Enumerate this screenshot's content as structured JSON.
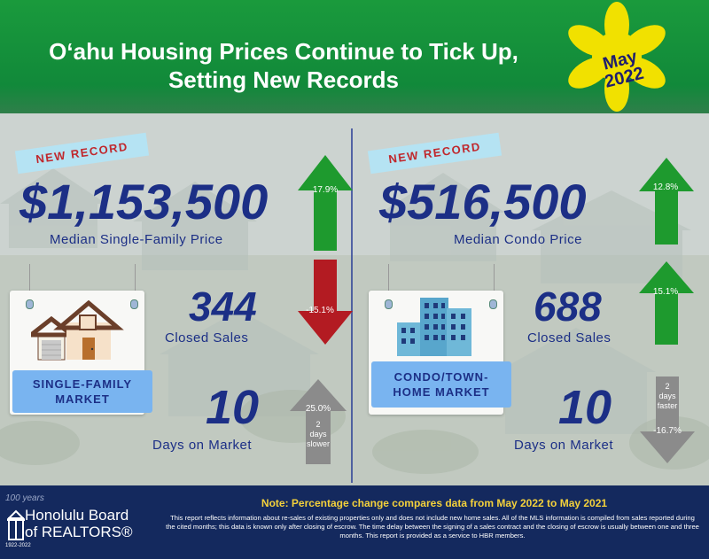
{
  "header": {
    "title_line1": "O‘ahu Housing Prices Continue to Tick Up,",
    "title_line2": "Setting New Records",
    "month": "May",
    "year": "2022"
  },
  "single_family": {
    "ribbon": "NEW RECORD",
    "median_price": "$1,153,500",
    "median_label": "Median Single-Family Price",
    "median_change": "17.9%",
    "closed_sales": "344",
    "closed_label": "Closed Sales",
    "closed_change": "-15.1%",
    "dom": "10",
    "dom_label": "Days on Market",
    "dom_change": "25.0%",
    "dom_note_line1": "2",
    "dom_note_line2": "days",
    "dom_note_line3": "slower",
    "market_line1": "SINGLE-FAMILY",
    "market_line2": "MARKET"
  },
  "condo": {
    "ribbon": "NEW RECORD",
    "median_price": "$516,500",
    "median_label": "Median Condo Price",
    "median_change": "12.8%",
    "closed_sales": "688",
    "closed_label": "Closed Sales",
    "closed_change": "15.1%",
    "dom": "10",
    "dom_label": "Days on Market",
    "dom_change": "-16.7%",
    "dom_note_line1": "2",
    "dom_note_line2": "days",
    "dom_note_line3": "faster",
    "market_line1": "CONDO/TOWN-",
    "market_line2": "HOME MARKET"
  },
  "footer": {
    "note": "Note: Percentage change compares data from May 2022 to May 2021",
    "disclaimer": "This report reflects information about re-sales of existing properties only and does not include new home sales. All of the MLS information is compiled from sales reported during the cited months; this data is known only after closing of escrow. The time delay between the signing of a sales contract and the closing of escrow is usually between one and three months. This report is provided as a service to HBR members.",
    "logo_years": "100 years",
    "logo_line1": "Honolulu Board",
    "logo_line2": "of REALTORS®",
    "logo_dates": "1922-2022"
  },
  "colors": {
    "green": "#1a9a3c",
    "navy": "#1c2f86",
    "up_arrow": "#1e9a2e",
    "down_arrow": "#b31b22",
    "neutral_arrow": "#8b8b8b",
    "flower": "#f1e100"
  }
}
